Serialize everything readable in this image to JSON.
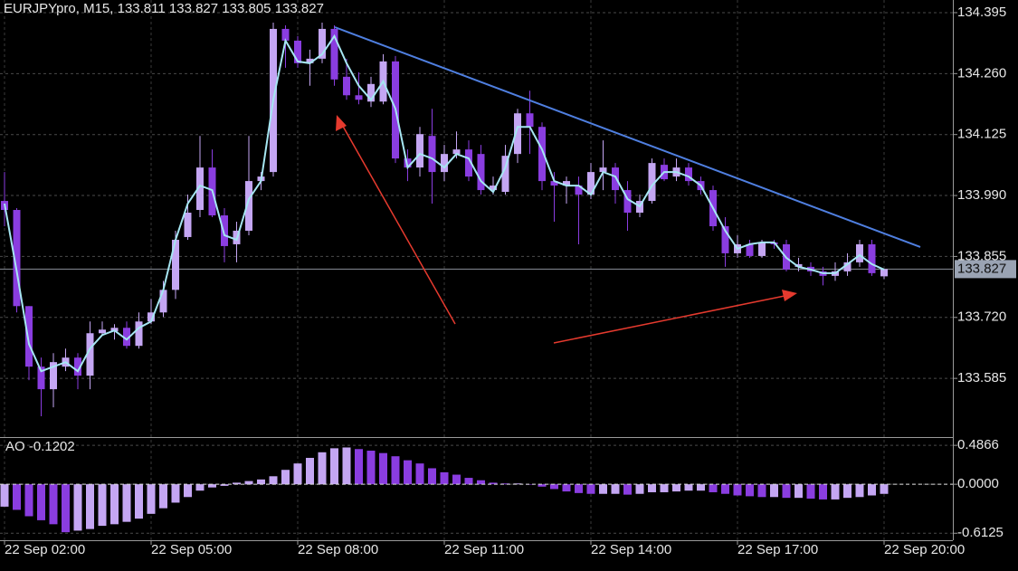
{
  "chart_data": [
    {
      "type": "candlestick",
      "title": "EURJPYpro, M15,",
      "categories": [
        "22 Sep 02:00",
        null,
        null,
        null,
        null,
        null,
        null,
        null,
        null,
        null,
        null,
        null,
        "22 Sep 05:00",
        null,
        null,
        null,
        null,
        null,
        null,
        null,
        null,
        null,
        null,
        null,
        "22 Sep 08:00",
        null,
        null,
        null,
        null,
        null,
        null,
        null,
        null,
        null,
        null,
        null,
        "22 Sep 11:00",
        null,
        null,
        null,
        null,
        null,
        null,
        null,
        null,
        null,
        null,
        null,
        "22 Sep 14:00",
        null,
        null,
        null,
        null,
        null,
        null,
        null,
        null,
        null,
        null,
        null,
        "22 Sep 17:00",
        null,
        null,
        null,
        null,
        null,
        null,
        null,
        null,
        null,
        null,
        null,
        "22 Sep 20:00"
      ],
      "open": [
        133.978,
        133.958,
        133.745,
        133.611,
        133.561,
        133.611,
        133.631,
        133.591,
        133.685,
        133.689,
        133.697,
        133.657,
        133.711,
        133.731,
        133.781,
        133.898,
        133.958,
        134.052,
        133.946,
        133.882,
        133.912,
        134.022,
        134.042,
        134.359,
        134.333,
        134.283,
        134.293,
        134.359,
        134.253,
        134.212,
        134.198,
        134.198,
        134.287,
        134.072,
        134.052,
        134.122,
        134.042,
        134.082,
        134.092,
        134.082,
        134.002,
        133.998,
        134.082,
        134.172,
        134.142,
        134.022,
        134.012,
        134.012,
        133.992,
        134.042,
        134.052,
        134.002,
        133.952,
        133.978,
        134.058,
        134.032,
        134.052,
        134.022,
        134.002,
        133.922,
        133.862,
        133.882,
        133.856,
        133.886,
        133.882,
        133.832,
        133.832,
        133.822,
        133.812,
        133.822,
        133.842,
        133.882,
        133.811
      ],
      "high": [
        134.042,
        133.962,
        133.745,
        133.631,
        133.641,
        133.651,
        133.641,
        133.711,
        133.711,
        133.705,
        133.711,
        133.731,
        133.761,
        133.801,
        133.912,
        133.992,
        134.122,
        134.092,
        133.962,
        133.932,
        134.122,
        134.042,
        134.373,
        134.367,
        134.343,
        134.313,
        134.373,
        134.367,
        134.293,
        134.263,
        134.253,
        134.303,
        134.299,
        134.092,
        134.142,
        134.182,
        134.102,
        134.132,
        134.112,
        134.102,
        134.032,
        134.102,
        134.182,
        134.222,
        134.152,
        134.042,
        134.032,
        134.032,
        134.062,
        134.112,
        134.062,
        134.022,
        133.992,
        134.072,
        134.072,
        134.072,
        134.062,
        134.032,
        134.012,
        133.942,
        133.902,
        133.892,
        133.892,
        133.892,
        133.892,
        133.852,
        133.842,
        133.832,
        133.842,
        133.862,
        133.892,
        133.892,
        133.827
      ],
      "low": [
        133.922,
        133.731,
        133.581,
        133.501,
        133.521,
        133.601,
        133.561,
        133.561,
        133.681,
        133.671,
        133.651,
        133.651,
        133.705,
        133.721,
        133.761,
        133.892,
        133.942,
        133.942,
        133.842,
        133.842,
        133.902,
        134.002,
        134.032,
        134.273,
        134.273,
        134.233,
        134.283,
        134.233,
        134.202,
        134.192,
        134.186,
        134.192,
        134.062,
        134.022,
        134.032,
        133.972,
        134.022,
        134.072,
        134.022,
        133.992,
        133.992,
        133.992,
        134.062,
        134.082,
        134.002,
        133.932,
        133.972,
        133.882,
        133.982,
        134.002,
        133.972,
        133.912,
        133.942,
        133.972,
        134.022,
        134.022,
        134.012,
        133.992,
        133.912,
        133.832,
        133.852,
        133.852,
        133.852,
        133.872,
        133.822,
        133.822,
        133.812,
        133.791,
        133.801,
        133.812,
        133.832,
        133.812,
        133.805
      ],
      "close": [
        133.958,
        133.745,
        133.611,
        133.561,
        133.621,
        133.631,
        133.591,
        133.685,
        133.693,
        133.697,
        133.657,
        133.711,
        133.731,
        133.781,
        133.892,
        133.952,
        134.052,
        133.946,
        133.878,
        133.912,
        134.022,
        134.032,
        134.359,
        134.333,
        134.283,
        134.293,
        134.359,
        134.247,
        134.212,
        134.202,
        134.237,
        134.287,
        134.072,
        134.052,
        134.126,
        134.042,
        134.082,
        134.092,
        134.032,
        134.002,
        134.012,
        134.078,
        134.172,
        134.142,
        134.022,
        134.012,
        134.022,
        133.992,
        134.042,
        134.052,
        134.002,
        133.952,
        133.978,
        134.062,
        134.026,
        134.052,
        134.022,
        134.002,
        133.922,
        133.862,
        133.882,
        133.856,
        133.886,
        133.882,
        133.826,
        133.838,
        133.822,
        133.812,
        133.822,
        133.842,
        133.882,
        133.818,
        133.827
      ],
      "ma": {
        "color": "#a6e6f2",
        "values": [
          133.972,
          133.822,
          133.661,
          133.601,
          133.611,
          133.621,
          133.601,
          133.651,
          133.681,
          133.691,
          133.671,
          133.697,
          133.711,
          133.781,
          133.892,
          133.972,
          134.012,
          134.002,
          133.902,
          133.892,
          133.982,
          134.022,
          134.202,
          134.333,
          134.287,
          134.283,
          134.303,
          134.343,
          134.283,
          134.233,
          134.202,
          134.243,
          134.182,
          134.052,
          134.082,
          134.072,
          134.052,
          134.082,
          134.072,
          134.022,
          133.998,
          134.052,
          134.142,
          134.142,
          134.092,
          134.022,
          134.012,
          134.012,
          133.992,
          134.042,
          134.032,
          133.982,
          133.966,
          134.012,
          134.042,
          134.042,
          134.032,
          134.012,
          133.962,
          133.912,
          133.872,
          133.882,
          133.886,
          133.886,
          133.852,
          133.832,
          133.826,
          133.818,
          133.818,
          133.838,
          133.858,
          133.838,
          133.826
        ]
      },
      "up_color": "#c4a6f3",
      "down_color": "#8a3de0",
      "ylim": [
        133.455,
        134.423
      ],
      "yticks": [
        134.395,
        {
          "value": 134.26,
          "label": "134.260"
        },
        134.125,
        {
          "value": 133.99,
          "label": "133.990"
        },
        133.855,
        {
          "value": 133.72,
          "label": "133.720"
        },
        133.585
      ],
      "grid": true
    },
    {
      "type": "bar",
      "title": "AO",
      "values": [
        -0.28,
        -0.32,
        -0.4,
        -0.45,
        -0.5,
        -0.6,
        -0.58,
        -0.56,
        -0.52,
        -0.5,
        -0.47,
        -0.43,
        -0.37,
        -0.3,
        -0.23,
        -0.16,
        -0.08,
        -0.04,
        -0.02,
        0.02,
        0.04,
        0.06,
        0.1,
        0.18,
        0.26,
        0.33,
        0.4,
        0.45,
        0.46,
        0.44,
        0.42,
        0.39,
        0.35,
        0.3,
        0.26,
        0.2,
        0.15,
        0.12,
        0.08,
        0.05,
        0.02,
        0.01,
        0.01,
        0.0,
        -0.03,
        -0.06,
        -0.09,
        -0.11,
        -0.12,
        -0.12,
        -0.12,
        -0.13,
        -0.12,
        -0.1,
        -0.1,
        -0.09,
        -0.08,
        -0.08,
        -0.1,
        -0.12,
        -0.14,
        -0.15,
        -0.16,
        -0.16,
        -0.17,
        -0.17,
        -0.18,
        -0.19,
        -0.19,
        -0.17,
        -0.16,
        -0.14,
        -0.1202
      ],
      "up_color": "#c4a6f3",
      "down_color": "#8a3de0",
      "ylim": [
        -0.7,
        0.59
      ],
      "yticks": [
        0.4866,
        {
          "value": 0,
          "label": "0.0000"
        },
        -0.6125
      ],
      "grid": true
    }
  ]
}
